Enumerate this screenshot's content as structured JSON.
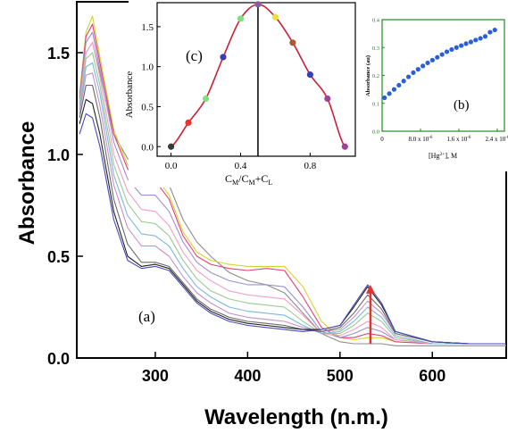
{
  "chart_data": [
    {
      "type": "line",
      "id": "main",
      "xlabel": "Wavelength (n.m.)",
      "ylabel": "Absorbance",
      "xlim": [
        215,
        680
      ],
      "ylim": [
        0.0,
        1.75
      ],
      "xticks": [
        300,
        400,
        500,
        600
      ],
      "yticks": [
        0.0,
        0.5,
        1.0,
        1.5
      ],
      "ytick_labels": [
        "0.0",
        "0.5",
        "1.0",
        "1.5"
      ],
      "panel_label": "(a)",
      "arrow": {
        "x": 533,
        "y_from": 0.07,
        "y_to": 0.36,
        "color": "#e8332d"
      },
      "series": [
        {
          "color": "#8c8c8c",
          "x": [
            218,
            225,
            232,
            240,
            255,
            270,
            285,
            300,
            315,
            330,
            345,
            360,
            380,
            400,
            420,
            440,
            460,
            480,
            500,
            515,
            530,
            545,
            560,
            600,
            640,
            680
          ],
          "y": [
            1.25,
            1.5,
            1.55,
            1.4,
            1.1,
            0.98,
            0.94,
            0.96,
            0.85,
            0.68,
            0.57,
            0.5,
            0.42,
            0.38,
            0.36,
            0.32,
            0.22,
            0.12,
            0.08,
            0.07,
            0.07,
            0.07,
            0.06,
            0.06,
            0.06,
            0.06
          ]
        },
        {
          "color": "#d4d432",
          "x": [
            218,
            225,
            232,
            240,
            255,
            270,
            285,
            300,
            315,
            330,
            345,
            360,
            380,
            400,
            420,
            440,
            460,
            480,
            500,
            515,
            530,
            545,
            560,
            600,
            640,
            680
          ],
          "y": [
            1.3,
            1.6,
            1.68,
            1.48,
            1.12,
            0.95,
            0.88,
            0.89,
            0.8,
            0.62,
            0.52,
            0.48,
            0.46,
            0.45,
            0.45,
            0.45,
            0.35,
            0.18,
            0.1,
            0.09,
            0.1,
            0.1,
            0.08,
            0.07,
            0.07,
            0.07
          ]
        },
        {
          "color": "#e0407a",
          "x": [
            218,
            225,
            232,
            240,
            255,
            270,
            285,
            300,
            315,
            330,
            345,
            360,
            380,
            400,
            420,
            440,
            460,
            480,
            500,
            515,
            530,
            545,
            560,
            600,
            640,
            680
          ],
          "y": [
            1.28,
            1.58,
            1.64,
            1.45,
            1.1,
            0.93,
            0.86,
            0.87,
            0.78,
            0.6,
            0.5,
            0.46,
            0.44,
            0.43,
            0.44,
            0.43,
            0.3,
            0.15,
            0.1,
            0.1,
            0.12,
            0.11,
            0.08,
            0.07,
            0.07,
            0.07
          ]
        },
        {
          "color": "#9d8fd0",
          "x": [
            218,
            225,
            232,
            240,
            255,
            270,
            285,
            300,
            315,
            330,
            345,
            360,
            380,
            400,
            420,
            440,
            460,
            480,
            500,
            515,
            530,
            545,
            560,
            600,
            640,
            680
          ],
          "y": [
            1.27,
            1.55,
            1.6,
            1.42,
            1.06,
            0.88,
            0.8,
            0.8,
            0.72,
            0.57,
            0.47,
            0.42,
            0.38,
            0.36,
            0.36,
            0.35,
            0.25,
            0.13,
            0.1,
            0.12,
            0.15,
            0.13,
            0.09,
            0.07,
            0.07,
            0.07
          ]
        },
        {
          "color": "#f2a0c6",
          "x": [
            218,
            225,
            232,
            240,
            255,
            270,
            285,
            300,
            315,
            330,
            345,
            360,
            380,
            400,
            420,
            440,
            460,
            480,
            500,
            515,
            530,
            545,
            560,
            600,
            640,
            680
          ],
          "y": [
            1.25,
            1.5,
            1.55,
            1.38,
            1.0,
            0.82,
            0.73,
            0.72,
            0.65,
            0.52,
            0.43,
            0.38,
            0.33,
            0.31,
            0.3,
            0.29,
            0.21,
            0.12,
            0.11,
            0.14,
            0.18,
            0.15,
            0.09,
            0.07,
            0.07,
            0.07
          ]
        },
        {
          "color": "#9bc98f",
          "x": [
            218,
            225,
            232,
            240,
            255,
            270,
            285,
            300,
            315,
            330,
            345,
            360,
            380,
            400,
            420,
            440,
            460,
            480,
            500,
            515,
            530,
            545,
            560,
            600,
            640,
            680
          ],
          "y": [
            1.24,
            1.47,
            1.5,
            1.34,
            0.95,
            0.76,
            0.67,
            0.66,
            0.6,
            0.48,
            0.39,
            0.33,
            0.29,
            0.27,
            0.26,
            0.25,
            0.18,
            0.12,
            0.12,
            0.16,
            0.22,
            0.18,
            0.1,
            0.07,
            0.07,
            0.07
          ]
        },
        {
          "color": "#7ab8e0",
          "x": [
            218,
            225,
            232,
            240,
            255,
            270,
            285,
            300,
            315,
            330,
            345,
            360,
            380,
            400,
            420,
            440,
            460,
            480,
            500,
            515,
            530,
            545,
            560,
            600,
            640,
            680
          ],
          "y": [
            1.22,
            1.43,
            1.45,
            1.3,
            0.9,
            0.7,
            0.61,
            0.6,
            0.55,
            0.44,
            0.35,
            0.3,
            0.25,
            0.23,
            0.22,
            0.21,
            0.16,
            0.12,
            0.13,
            0.18,
            0.25,
            0.2,
            0.11,
            0.07,
            0.07,
            0.07
          ]
        },
        {
          "color": "#c890c8",
          "x": [
            218,
            225,
            232,
            240,
            255,
            270,
            285,
            300,
            315,
            330,
            345,
            360,
            380,
            400,
            420,
            440,
            460,
            480,
            500,
            515,
            530,
            545,
            560,
            600,
            640,
            680
          ],
          "y": [
            1.2,
            1.39,
            1.4,
            1.24,
            0.85,
            0.64,
            0.55,
            0.55,
            0.5,
            0.4,
            0.32,
            0.27,
            0.22,
            0.2,
            0.19,
            0.18,
            0.15,
            0.13,
            0.14,
            0.2,
            0.28,
            0.22,
            0.12,
            0.08,
            0.07,
            0.07
          ]
        },
        {
          "color": "#6a6a6a",
          "x": [
            218,
            225,
            232,
            240,
            255,
            270,
            285,
            300,
            315,
            330,
            345,
            360,
            380,
            400,
            420,
            440,
            460,
            480,
            500,
            515,
            530,
            545,
            560,
            600,
            640,
            680
          ],
          "y": [
            1.18,
            1.34,
            1.34,
            1.18,
            0.78,
            0.56,
            0.47,
            0.47,
            0.45,
            0.37,
            0.29,
            0.24,
            0.2,
            0.18,
            0.17,
            0.16,
            0.14,
            0.13,
            0.15,
            0.22,
            0.31,
            0.24,
            0.12,
            0.08,
            0.07,
            0.07
          ]
        },
        {
          "color": "#222222",
          "x": [
            218,
            225,
            232,
            240,
            255,
            270,
            285,
            300,
            315,
            330,
            345,
            360,
            380,
            400,
            420,
            440,
            460,
            480,
            500,
            515,
            530,
            545,
            560,
            600,
            640,
            680
          ],
          "y": [
            1.15,
            1.27,
            1.25,
            1.1,
            0.72,
            0.5,
            0.45,
            0.46,
            0.44,
            0.36,
            0.28,
            0.23,
            0.19,
            0.17,
            0.16,
            0.15,
            0.14,
            0.14,
            0.16,
            0.25,
            0.35,
            0.26,
            0.13,
            0.08,
            0.07,
            0.07
          ]
        },
        {
          "color": "#4a4ab8",
          "x": [
            218,
            225,
            232,
            240,
            255,
            270,
            285,
            300,
            315,
            330,
            345,
            360,
            380,
            400,
            420,
            440,
            460,
            480,
            500,
            515,
            530,
            545,
            560,
            600,
            640,
            680
          ],
          "y": [
            1.1,
            1.2,
            1.18,
            1.04,
            0.68,
            0.48,
            0.44,
            0.45,
            0.43,
            0.35,
            0.27,
            0.22,
            0.18,
            0.16,
            0.15,
            0.14,
            0.13,
            0.14,
            0.16,
            0.26,
            0.36,
            0.27,
            0.13,
            0.08,
            0.07,
            0.07
          ]
        }
      ]
    },
    {
      "type": "scatter",
      "id": "inset_c",
      "xlabel": "C",
      "ylabel": "Absorbance",
      "xlim": [
        -0.08,
        1.06
      ],
      "ylim": [
        -0.12,
        1.8
      ],
      "xticks": [
        0.0,
        0.4,
        0.8
      ],
      "xtick_labels": [
        "0.0",
        "0.4",
        "0.8"
      ],
      "yticks": [
        0.0,
        0.5,
        1.0,
        1.5
      ],
      "ytick_labels": [
        "0.0",
        "0.5",
        "1.0",
        "1.5"
      ],
      "panel_label": "(c)",
      "vline_x": 0.5,
      "fit_color": "#cc1f3a",
      "points": [
        {
          "x": 0.0,
          "y": 0.0,
          "color": "#3a3a3a"
        },
        {
          "x": 0.1,
          "y": 0.3,
          "color": "#e8332d"
        },
        {
          "x": 0.2,
          "y": 0.6,
          "color": "#7ee07e"
        },
        {
          "x": 0.3,
          "y": 1.12,
          "color": "#3b3bb5"
        },
        {
          "x": 0.4,
          "y": 1.6,
          "color": "#7ee07e"
        },
        {
          "x": 0.5,
          "y": 1.78,
          "color": "#8a5aa8"
        },
        {
          "x": 0.6,
          "y": 1.62,
          "color": "#e6e040"
        },
        {
          "x": 0.7,
          "y": 1.3,
          "color": "#a85a30"
        },
        {
          "x": 0.8,
          "y": 0.9,
          "color": "#3b3bb5"
        },
        {
          "x": 0.9,
          "y": 0.6,
          "color": "#a040a0"
        },
        {
          "x": 1.0,
          "y": 0.0,
          "color": "#a040a0"
        }
      ]
    },
    {
      "type": "scatter",
      "id": "inset_b",
      "xlabel": "[Hg",
      "ylabel": "Absorbance (au)",
      "xlim": [
        0,
        25.5
      ],
      "ylim": [
        0.0,
        0.4
      ],
      "xticks": [
        0,
        8,
        16,
        24
      ],
      "xtick_labels": [
        "0",
        "8.0 x 10",
        "1.6 x 10",
        "2.4 x 10"
      ],
      "yticks": [
        0.0,
        0.1,
        0.2,
        0.3,
        0.4
      ],
      "ytick_labels": [
        "0.0",
        "0.1",
        "0.2",
        "0.3",
        "0.4"
      ],
      "panel_label": "(b)",
      "point_color": "#2a5fd8",
      "x": [
        0.5,
        1.5,
        2.5,
        3.5,
        4.5,
        5.5,
        6.5,
        7.5,
        8.5,
        9.5,
        10.5,
        11.5,
        12.5,
        13.5,
        14.5,
        15.5,
        16.5,
        17.5,
        18.5,
        19.5,
        20.5,
        21.5,
        22.5,
        23.5
      ],
      "y": [
        0.12,
        0.135,
        0.15,
        0.165,
        0.18,
        0.195,
        0.21,
        0.222,
        0.234,
        0.245,
        0.255,
        0.265,
        0.275,
        0.285,
        0.293,
        0.3,
        0.307,
        0.314,
        0.32,
        0.327,
        0.333,
        0.34,
        0.355,
        0.363
      ]
    }
  ],
  "labels": {
    "inset_c_sub_m": "M",
    "inset_c_slash": "/C",
    "inset_c_sub_m2": "M",
    "inset_c_plus": "+C",
    "inset_c_sub_l": "L",
    "inset_b_sup": "2+",
    "inset_b_close": "], M",
    "inset_b_exp": "-6"
  }
}
